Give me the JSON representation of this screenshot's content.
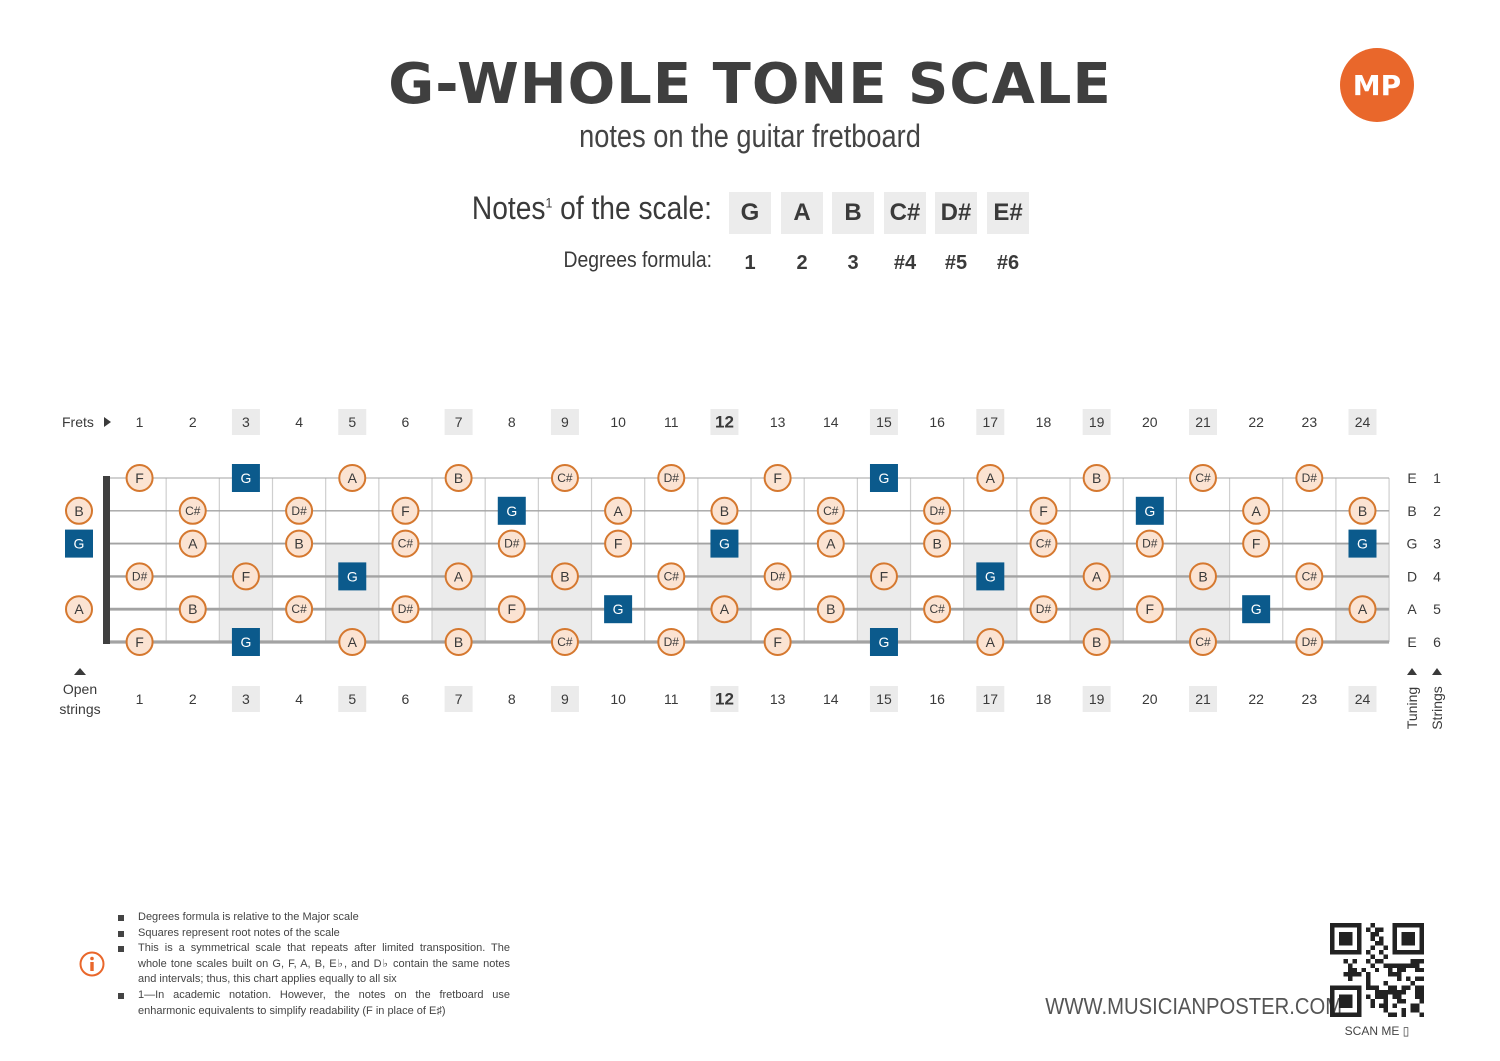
{
  "header": {
    "title": "G-WHOLE TONE SCALE",
    "subtitle": "notes on the guitar fretboard",
    "logo_text": "MP",
    "notes_label": "Notes",
    "notes_label_sup": "1",
    "notes_label_suffix": " of the scale:",
    "degrees_label": "Degrees formula:"
  },
  "scale": {
    "notes": [
      "G",
      "A",
      "B",
      "C#",
      "D#",
      "E#"
    ],
    "degrees": [
      "1",
      "2",
      "3",
      "#4",
      "#5",
      "#6"
    ]
  },
  "fretboard": {
    "frets_label": "Frets",
    "open_strings_label": [
      "Open",
      "strings"
    ],
    "tuning_label": "Tuning",
    "strings_label": "Strings",
    "fret_numbers": [
      1,
      2,
      3,
      4,
      5,
      6,
      7,
      8,
      9,
      10,
      11,
      12,
      13,
      14,
      15,
      16,
      17,
      18,
      19,
      20,
      21,
      22,
      23,
      24
    ],
    "marker_frets": [
      3,
      5,
      7,
      9,
      12,
      15,
      17,
      19,
      21,
      24
    ],
    "root_note": "G",
    "strings": [
      {
        "number": "1",
        "tuning": "E",
        "open_note": "",
        "frets": [
          "F",
          "",
          "G",
          "",
          "A",
          "",
          "B",
          "",
          "C#",
          "",
          "D#",
          "",
          "F",
          "",
          "G",
          "",
          "A",
          "",
          "B",
          "",
          "C#",
          "",
          "D#",
          ""
        ]
      },
      {
        "number": "2",
        "tuning": "B",
        "open_note": "B",
        "frets": [
          "",
          "C#",
          "",
          "D#",
          "",
          "F",
          "",
          "G",
          "",
          "A",
          "",
          "B",
          "",
          "C#",
          "",
          "D#",
          "",
          "F",
          "",
          "G",
          "",
          "A",
          "",
          "B"
        ]
      },
      {
        "number": "3",
        "tuning": "G",
        "open_note": "G",
        "frets": [
          "",
          "A",
          "",
          "B",
          "",
          "C#",
          "",
          "D#",
          "",
          "F",
          "",
          "G",
          "",
          "A",
          "",
          "B",
          "",
          "C#",
          "",
          "D#",
          "",
          "F",
          "",
          "G"
        ]
      },
      {
        "number": "4",
        "tuning": "D",
        "open_note": "",
        "frets": [
          "D#",
          "",
          "F",
          "",
          "G",
          "",
          "A",
          "",
          "B",
          "",
          "C#",
          "",
          "D#",
          "",
          "F",
          "",
          "G",
          "",
          "A",
          "",
          "B",
          "",
          "C#",
          ""
        ]
      },
      {
        "number": "5",
        "tuning": "A",
        "open_note": "A",
        "frets": [
          "",
          "B",
          "",
          "C#",
          "",
          "D#",
          "",
          "F",
          "",
          "G",
          "",
          "A",
          "",
          "B",
          "",
          "C#",
          "",
          "D#",
          "",
          "F",
          "",
          "G",
          "",
          "A"
        ]
      },
      {
        "number": "6",
        "tuning": "E",
        "open_note": "",
        "frets": [
          "F",
          "",
          "G",
          "",
          "A",
          "",
          "B",
          "",
          "C#",
          "",
          "D#",
          "",
          "F",
          "",
          "G",
          "",
          "A",
          "",
          "B",
          "",
          "C#",
          "",
          "D#",
          ""
        ]
      }
    ]
  },
  "footer": {
    "notes": [
      "Degrees formula is relative to the Major scale",
      "Squares represent root notes of the scale",
      "This is a symmetrical scale that repeats after limited transposition. The whole tone scales built on G, F, A, B, E♭, and D♭ contain the same notes and intervals; thus, this chart applies equally to all six",
      "1—In academic notation. However, the notes on the fretboard use enharmonic equivalents to simplify readability (F in place of E♯)"
    ],
    "website": "WWW.MUSICIANPOSTER.COM",
    "scan_me": "SCAN ME"
  },
  "colors": {
    "root": "#0b5a8c",
    "note_fill": "#fbe3d2",
    "note_stroke": "#d5782f",
    "marker_bg": "#ebebeb",
    "text": "#3a3a3a",
    "logo": "#e9672b"
  }
}
